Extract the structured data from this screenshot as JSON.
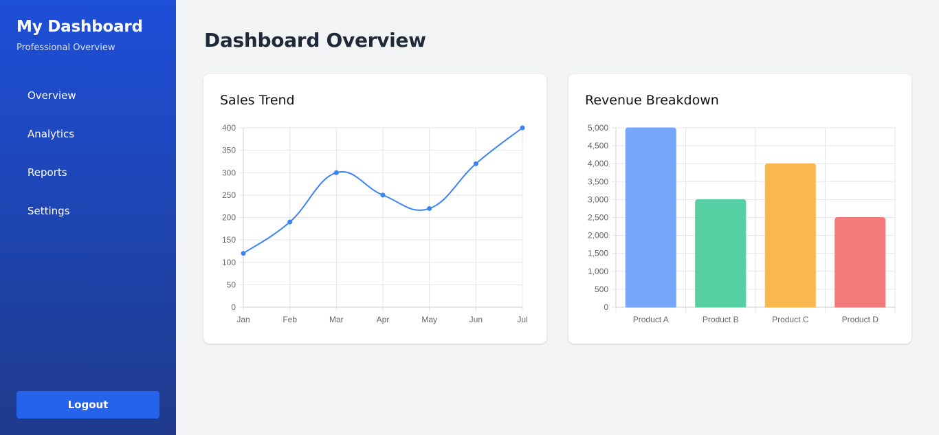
{
  "sidebar": {
    "title": "My Dashboard",
    "subtitle": "Professional Overview",
    "items": [
      {
        "label": "Overview"
      },
      {
        "label": "Analytics"
      },
      {
        "label": "Reports"
      },
      {
        "label": "Settings"
      }
    ],
    "logout_label": "Logout"
  },
  "main": {
    "title": "Dashboard Overview"
  },
  "cards": [
    {
      "title": "Sales Trend"
    },
    {
      "title": "Revenue Breakdown"
    }
  ],
  "colors": {
    "line": "#3b82f6",
    "bars": [
      "#76a6fb",
      "#56cfa3",
      "#f8b84e",
      "#f47b7b"
    ]
  },
  "chart_data": [
    {
      "type": "line",
      "title": "",
      "categories": [
        "Jan",
        "Feb",
        "Mar",
        "Apr",
        "May",
        "Jun",
        "Jul"
      ],
      "series": [
        {
          "values": [
            120,
            190,
            300,
            250,
            220,
            320,
            400
          ]
        }
      ],
      "ylim": [
        0,
        400
      ],
      "yticks": [
        "0",
        "50",
        "100",
        "150",
        "200",
        "250",
        "300",
        "350",
        "400"
      ],
      "grid": true
    },
    {
      "type": "bar",
      "title": "",
      "categories": [
        "Product A",
        "Product B",
        "Product C",
        "Product D"
      ],
      "values": [
        5000,
        3000,
        4000,
        2500
      ],
      "ylim": [
        0,
        5000
      ],
      "yticks": [
        "0",
        "500",
        "1,000",
        "1,500",
        "2,000",
        "2,500",
        "3,000",
        "3,500",
        "4,000",
        "4,500",
        "5,000"
      ],
      "grid": true
    }
  ]
}
